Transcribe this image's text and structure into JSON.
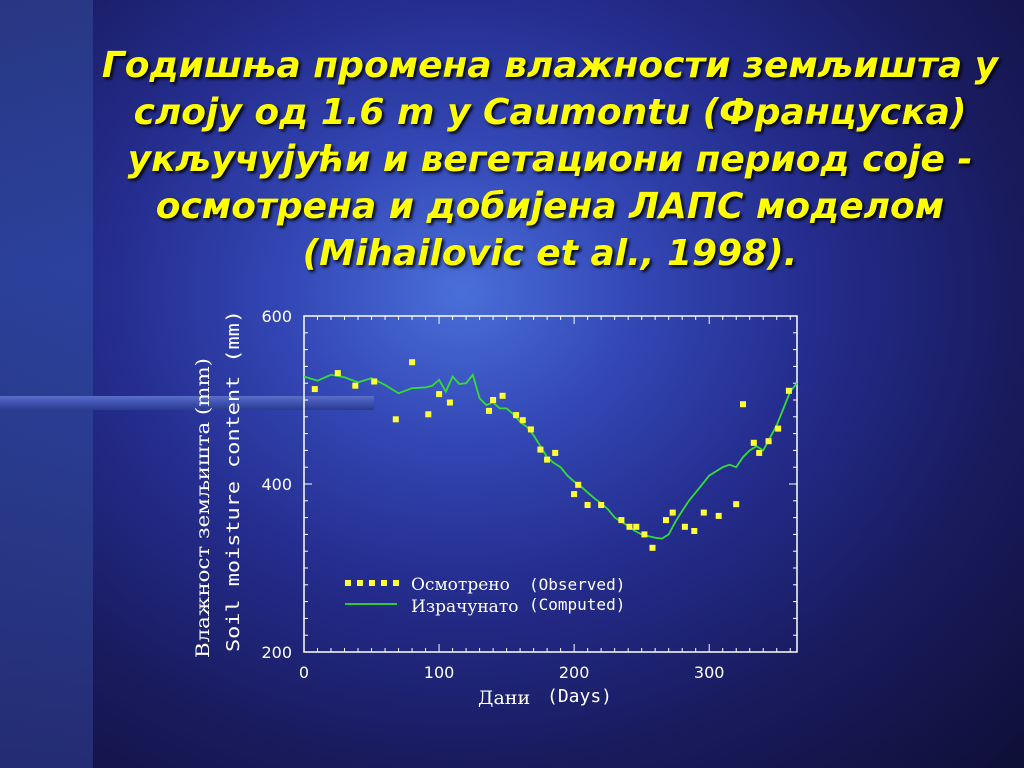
{
  "slide": {
    "title": "Годишња промена влажности земљишта у слоју од 1.6 m у Caumontu (Француска) укључујући и вегетациони период соје - осмотрена и добијена ЛАПС моделом (Mihailovic et al., 1998)."
  },
  "colors": {
    "title": "#ffff00",
    "observed": "#ffff33",
    "computed": "#33dd33",
    "axes": "#ffffff"
  },
  "chart_data": {
    "type": "scatter",
    "xlabel_sr": "Дани",
    "xlabel_en": "(Days)",
    "ylabel_sr": "Влажност земљишта (mm)",
    "ylabel_en": "Soil moisture content (mm)",
    "xlim": [
      0,
      365
    ],
    "ylim": [
      200,
      600
    ],
    "xticks": [
      0,
      100,
      200,
      300
    ],
    "yticks": [
      200,
      400,
      600
    ],
    "legend": {
      "observed_sr": "Осмотрено",
      "observed_en": "(Observed)",
      "computed_sr": "Израчунато",
      "computed_en": "(Computed)"
    },
    "series": [
      {
        "name": "Observed",
        "style": "points",
        "x": [
          8,
          25,
          38,
          52,
          68,
          80,
          92,
          100,
          108,
          137,
          140,
          147,
          157,
          162,
          168,
          175,
          180,
          186,
          200,
          203,
          210,
          220,
          235,
          241,
          246,
          252,
          258,
          268,
          273,
          282,
          289,
          296,
          307,
          320,
          325,
          333,
          337,
          344,
          351,
          359
        ],
        "y": [
          513,
          532,
          517,
          522,
          477,
          545,
          483,
          507,
          497,
          487,
          500,
          505,
          482,
          476,
          465,
          441,
          429,
          437,
          388,
          399,
          375,
          375,
          357,
          349,
          349,
          340,
          324,
          357,
          366,
          349,
          344,
          366,
          362,
          376,
          495,
          449,
          437,
          451,
          466,
          511
        ]
      },
      {
        "name": "Computed",
        "style": "line",
        "x": [
          0,
          10,
          20,
          30,
          40,
          50,
          60,
          70,
          80,
          90,
          95,
          100,
          105,
          110,
          115,
          120,
          125,
          130,
          135,
          140,
          145,
          150,
          155,
          160,
          165,
          170,
          175,
          180,
          185,
          190,
          195,
          200,
          205,
          210,
          215,
          220,
          225,
          230,
          235,
          240,
          245,
          250,
          255,
          260,
          265,
          270,
          275,
          280,
          285,
          290,
          295,
          300,
          305,
          310,
          315,
          320,
          325,
          330,
          335,
          340,
          345,
          350,
          355,
          360,
          365
        ],
        "y": [
          528,
          523,
          530,
          527,
          521,
          526,
          518,
          508,
          514,
          515,
          517,
          524,
          510,
          528,
          519,
          520,
          530,
          502,
          494,
          497,
          490,
          490,
          483,
          474,
          468,
          458,
          445,
          432,
          425,
          420,
          410,
          403,
          397,
          390,
          383,
          377,
          370,
          360,
          355,
          350,
          344,
          340,
          338,
          336,
          335,
          340,
          355,
          368,
          380,
          390,
          400,
          410,
          415,
          420,
          423,
          420,
          432,
          440,
          445,
          440,
          455,
          470,
          490,
          510,
          520
        ]
      }
    ]
  }
}
